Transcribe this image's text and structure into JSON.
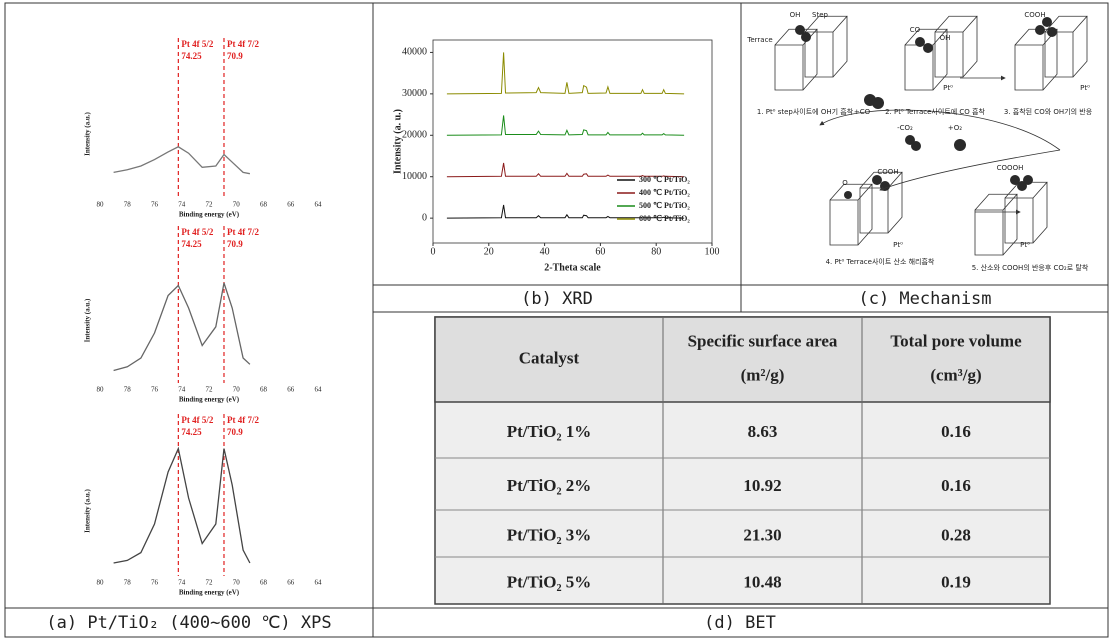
{
  "chart_data": [
    {
      "type": "line",
      "xlabel": "Binding energy (eV)",
      "ylabel": "Intensity (a.u.)",
      "x": [
        79,
        78,
        77,
        76,
        75,
        74.25,
        73.5,
        72.5,
        71.5,
        70.9,
        70.3,
        69.5,
        69
      ],
      "values": [
        20,
        22,
        25,
        30,
        36,
        40,
        35,
        24,
        25,
        34,
        28,
        20,
        19
      ],
      "color": "#777777",
      "xlim": [
        80,
        64
      ],
      "xticks": [
        80,
        78,
        76,
        74,
        72,
        70,
        68,
        66,
        64
      ],
      "ylim": [
        0,
        100
      ],
      "annotations": [
        {
          "text": "Pt 4f 5/2",
          "x": 74.25
        },
        {
          "text": "Pt 4f 7/2",
          "x": 70.9
        }
      ],
      "annotation_color": "#e02020"
    },
    {
      "type": "line",
      "xlabel": "Binding energy (eV)",
      "ylabel": "Intensity (a.u.)",
      "x": [
        79,
        78,
        77,
        76,
        75,
        74.25,
        73.5,
        72.5,
        71.5,
        70.9,
        70.3,
        69.5,
        69
      ],
      "values": [
        10,
        13,
        20,
        40,
        70,
        78,
        60,
        30,
        45,
        80,
        60,
        20,
        15
      ],
      "color": "#666666",
      "xlim": [
        80,
        64
      ],
      "xticks": [
        80,
        78,
        76,
        74,
        72,
        70,
        68,
        66,
        64
      ],
      "ylim": [
        0,
        100
      ],
      "annotations": [
        {
          "text": "Pt 4f 5/2",
          "x": 74.25
        },
        {
          "text": "Pt 4f 7/2",
          "x": 70.9
        }
      ],
      "annotation_color": "#e02020"
    },
    {
      "type": "line",
      "xlabel": "Binding energy (eV)",
      "ylabel": "Intensity (a.u.)",
      "x": [
        79,
        78,
        77,
        76,
        75,
        74.25,
        73.5,
        72.5,
        71.5,
        70.9,
        70.3,
        69.5,
        69
      ],
      "values": [
        10,
        12,
        18,
        40,
        80,
        98,
        60,
        25,
        40,
        98,
        70,
        20,
        10
      ],
      "color": "#444444",
      "xlim": [
        80,
        64
      ],
      "xticks": [
        80,
        78,
        76,
        74,
        72,
        70,
        68,
        66,
        64
      ],
      "ylim": [
        0,
        100
      ],
      "annotations": [
        {
          "text": "Pt 4f 5/2",
          "x": 74.25
        },
        {
          "text": "Pt 4f 7/2",
          "x": 70.9
        }
      ],
      "annotation_color": "#e02020"
    },
    {
      "type": "line",
      "xlabel": "2-Theta scale",
      "ylabel": "Intensity (a. u.)",
      "x": [
        5,
        24.5,
        25.3,
        26,
        37,
        37.8,
        38.6,
        47.3,
        48,
        48.7,
        53.5,
        54,
        55,
        55.6,
        62,
        62.7,
        63.4,
        74.5,
        75.1,
        75.7,
        82.1,
        82.7,
        83.3,
        90
      ],
      "xlim": [
        0,
        100
      ],
      "xticks": [
        0,
        20,
        40,
        60,
        80,
        100
      ],
      "ylim": [
        -6000,
        43000
      ],
      "yticks": [
        0,
        10000,
        20000,
        30000,
        40000
      ],
      "legend": "lower right",
      "series": [
        {
          "name": "300 ℃ Pt/TiO₂",
          "color": "#111111",
          "values": [
            0,
            100,
            3200,
            100,
            100,
            600,
            100,
            100,
            800,
            100,
            100,
            700,
            600,
            100,
            100,
            400,
            100,
            100,
            300,
            100,
            100,
            200,
            100,
            0
          ]
        },
        {
          "name": "400 ℃ Pt/TiO₂",
          "color": "#8b1a1a",
          "values": [
            10000,
            10100,
            13300,
            10100,
            10100,
            10700,
            10100,
            10100,
            10800,
            10100,
            10100,
            10600,
            10700,
            10100,
            10100,
            10400,
            10100,
            10100,
            10300,
            10100,
            10100,
            10200,
            10100,
            10000
          ]
        },
        {
          "name": "500 ℃ Pt/TiO₂",
          "color": "#1a8c1a",
          "values": [
            20000,
            20100,
            24800,
            20200,
            20200,
            21000,
            20200,
            20100,
            21200,
            20100,
            20200,
            21300,
            21100,
            20100,
            20100,
            20700,
            20100,
            20100,
            20500,
            20100,
            20100,
            20400,
            20100,
            20000
          ]
        },
        {
          "name": "600 ℃ Pt/TiO₂",
          "color": "#8b8b00",
          "values": [
            30000,
            30100,
            40000,
            30200,
            30300,
            31500,
            30300,
            30100,
            32800,
            30100,
            30300,
            32000,
            31600,
            30100,
            30200,
            31700,
            30100,
            30100,
            31000,
            30100,
            30100,
            31000,
            30100,
            30000
          ]
        }
      ]
    }
  ],
  "captions": [
    "(a) Pt/TiO₂ (400~600 ℃) XPS",
    "(b) XRD",
    "(c) Mechanism",
    "(d) BET"
  ],
  "mechanism": {
    "labels": [
      "Terrace",
      "OH",
      "Step",
      "+CO",
      "1. Pt⁰ step사이트에 OH기 흡착",
      "CO",
      "OH",
      "Pt⁰",
      "2. Pt⁰ Terrace사이트에 CO 흡착",
      "COOH",
      "Pt⁰",
      "3. 흡착된 CO와 OH기의 반응",
      "-CO₂",
      "+O₂",
      "O",
      "COOH",
      "Pt⁰",
      "4. Pt⁰ Terrace사이트 산소 해리흡착",
      "COOOH",
      "Pt⁰",
      "5. 산소와 COOH의 반응후 CO₂로 탈착"
    ]
  },
  "table": {
    "header": [
      [
        "Catalyst"
      ],
      [
        "Specific surface area",
        "(m²/g)"
      ],
      [
        "Total pore volume",
        "(cm³/g)"
      ]
    ],
    "rows": [
      [
        "Pt/TiO₂ 1%",
        "8.63",
        "0.16"
      ],
      [
        "Pt/TiO₂ 2%",
        "10.92",
        "0.16"
      ],
      [
        "Pt/TiO₂ 3%",
        "21.30",
        "0.28"
      ],
      [
        "Pt/TiO₂ 5%",
        "10.48",
        "0.19"
      ]
    ]
  }
}
